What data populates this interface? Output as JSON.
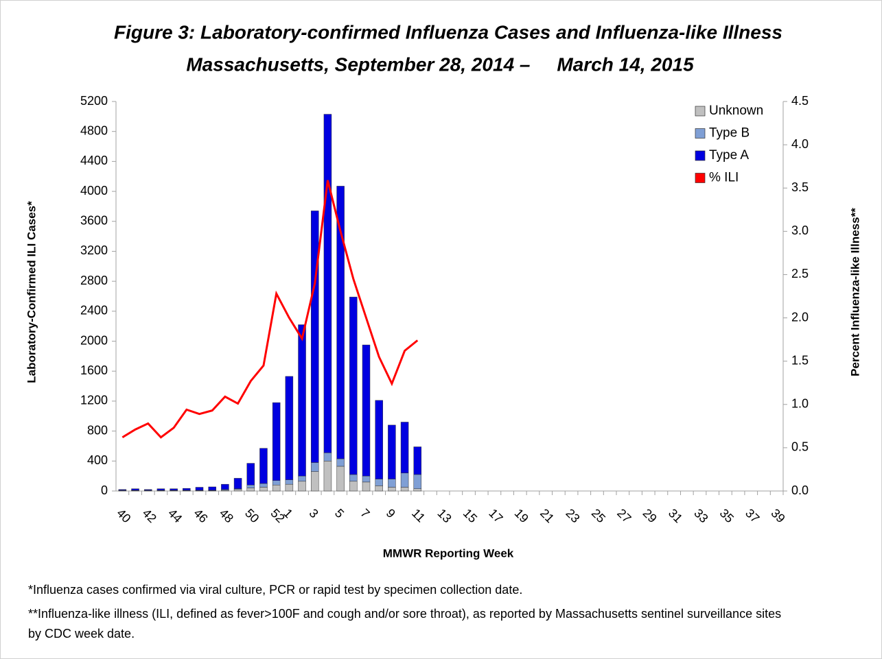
{
  "chart_data": {
    "type": "bar-line",
    "title": "Figure 3: Laboratory-confirmed Influenza Cases and Influenza-like Illness",
    "subtitle": "Massachusetts, September 28, 2014 –     March 14, 2015",
    "y_label": "Laboratory-Confirmed ILI Cases*",
    "y2_label": "Percent Influenza-like Illness**",
    "x_label": "MMWR Reporting Week",
    "notes": [
      "*Influenza cases confirmed via viral culture, PCR or rapid test by specimen collection date.",
      "**Influenza-like illness (ILI, defined as fever>100F and cough and/or sore throat), as reported by Massachusetts sentinel surveillance sites by CDC week date."
    ],
    "categories": [
      "40",
      null,
      "42",
      null,
      "44",
      null,
      "46",
      null,
      "48",
      null,
      "50",
      null,
      "52",
      "1",
      null,
      "3",
      null,
      "5",
      null,
      "7",
      null,
      "9",
      null,
      "11",
      null,
      "13",
      null,
      "15",
      null,
      "17",
      null,
      "19",
      null,
      "21",
      null,
      "23",
      null,
      "25",
      null,
      "27",
      null,
      "29",
      null,
      "31",
      null,
      "33",
      null,
      "35",
      null,
      "37",
      null,
      "39"
    ],
    "series": [
      {
        "name": "Unknown",
        "color": "#c0c0c0",
        "type": "bar",
        "values": [
          5,
          5,
          5,
          5,
          5,
          5,
          5,
          5,
          10,
          20,
          40,
          50,
          80,
          90,
          130,
          260,
          400,
          330,
          130,
          120,
          70,
          50,
          50,
          30,
          null,
          null,
          null,
          null,
          null,
          null,
          null,
          null,
          null,
          null,
          null,
          null,
          null,
          null,
          null,
          null,
          null,
          null,
          null,
          null,
          null,
          null,
          null,
          null,
          null,
          null,
          null,
          null
        ]
      },
      {
        "name": "Type B",
        "color": "#7f9fd5",
        "type": "bar",
        "values": [
          5,
          5,
          5,
          5,
          5,
          5,
          5,
          5,
          10,
          10,
          40,
          50,
          60,
          60,
          70,
          120,
          110,
          100,
          90,
          80,
          90,
          110,
          190,
          190,
          null,
          null,
          null,
          null,
          null,
          null,
          null,
          null,
          null,
          null,
          null,
          null,
          null,
          null,
          null,
          null,
          null,
          null,
          null,
          null,
          null,
          null,
          null,
          null,
          null,
          null,
          null,
          null
        ]
      },
      {
        "name": "Type A",
        "color": "#0000e0",
        "type": "bar",
        "values": [
          10,
          20,
          10,
          20,
          20,
          25,
          40,
          45,
          70,
          140,
          290,
          470,
          1040,
          1380,
          2020,
          3360,
          4520,
          3640,
          2370,
          1750,
          1050,
          720,
          680,
          370,
          null,
          null,
          null,
          null,
          null,
          null,
          null,
          null,
          null,
          null,
          null,
          null,
          null,
          null,
          null,
          null,
          null,
          null,
          null,
          null,
          null,
          null,
          null,
          null,
          null,
          null,
          null,
          null
        ]
      },
      {
        "name": "% ILI",
        "color": "#ff0000",
        "type": "line",
        "axis": "y2",
        "values": [
          0.62,
          0.71,
          0.78,
          0.62,
          0.73,
          0.94,
          0.89,
          0.93,
          1.09,
          1.01,
          1.27,
          1.45,
          2.28,
          2.0,
          1.76,
          2.4,
          3.59,
          3.0,
          2.45,
          2.0,
          1.55,
          1.24,
          1.62,
          1.74,
          null,
          null,
          null,
          null,
          null,
          null,
          null,
          null,
          null,
          null,
          null,
          null,
          null,
          null,
          null,
          null,
          null,
          null,
          null,
          null,
          null,
          null,
          null,
          null,
          null,
          null,
          null,
          null
        ]
      }
    ],
    "ylim": [
      0,
      5200
    ],
    "yticks": [
      0,
      400,
      800,
      1200,
      1600,
      2000,
      2400,
      2800,
      3200,
      3600,
      4000,
      4400,
      4800,
      5200
    ],
    "y2lim": [
      0,
      4.5
    ],
    "y2ticks": [
      {
        "value": 0,
        "label": "0.0"
      },
      0.5,
      {
        "value": 1,
        "label": "1.0"
      },
      1.5,
      {
        "value": 2,
        "label": "2.0"
      },
      2.5,
      {
        "value": 3,
        "label": "3.0"
      },
      3.5,
      {
        "value": 4,
        "label": "4.0"
      },
      4.5
    ],
    "legend": "top-right",
    "grid": false
  }
}
